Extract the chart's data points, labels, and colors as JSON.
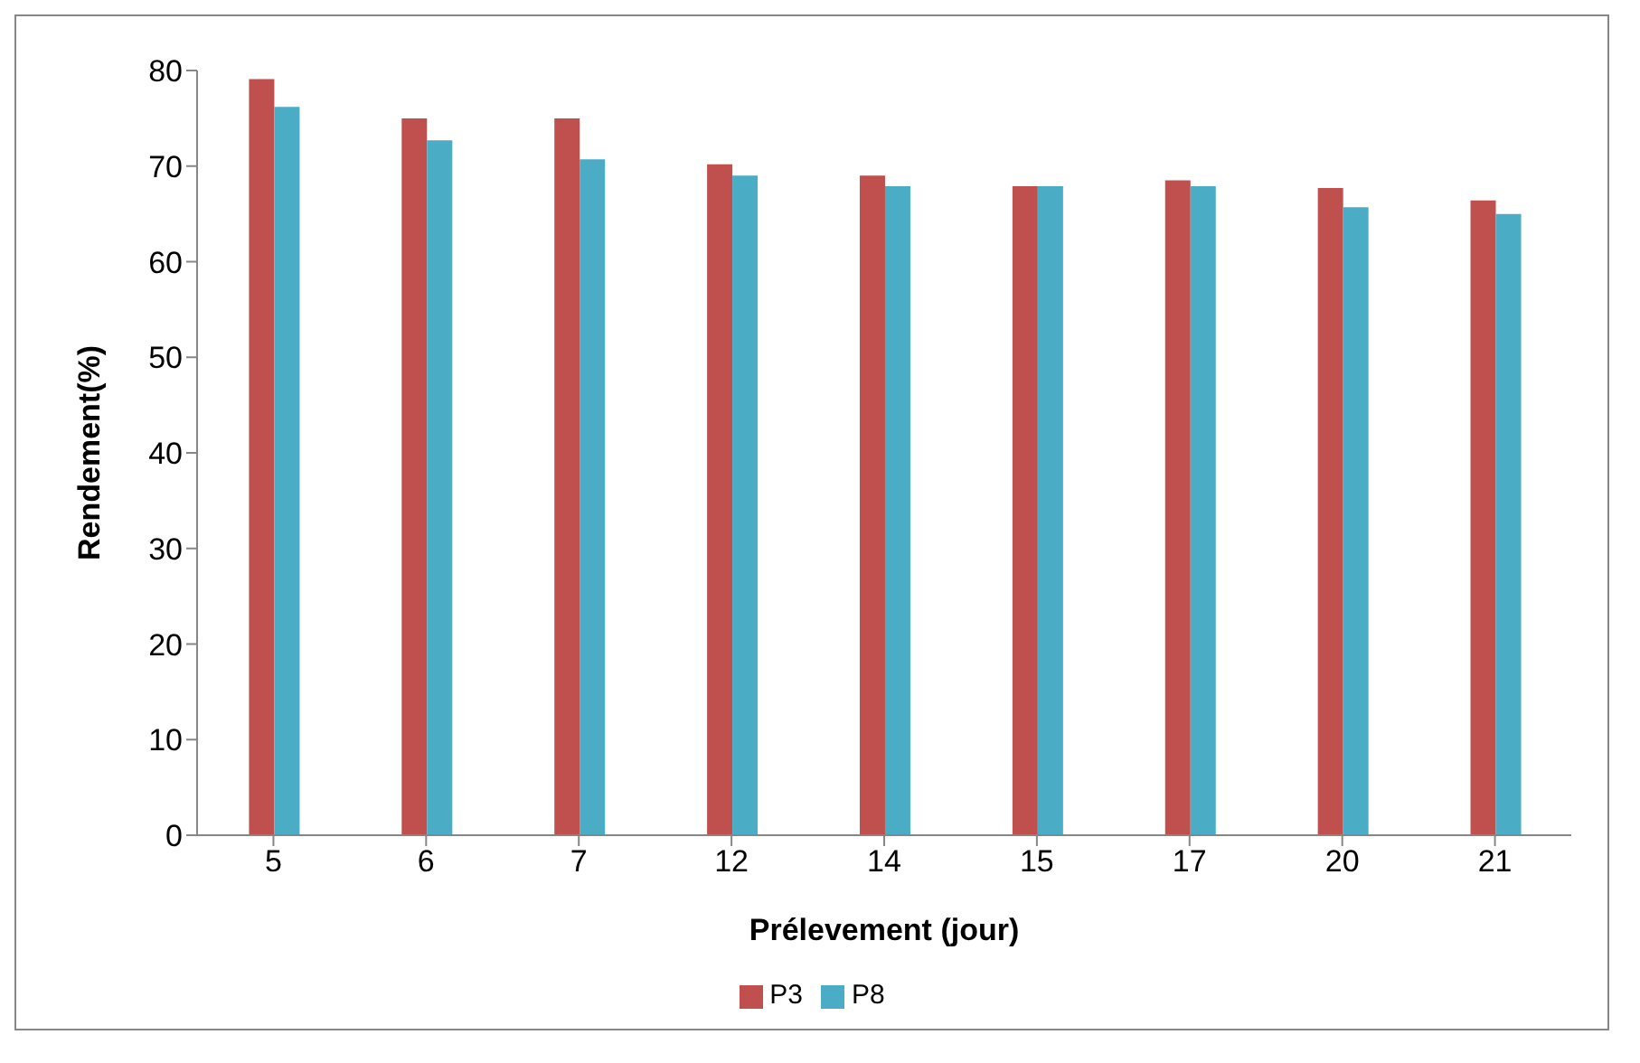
{
  "chart_data": {
    "type": "bar",
    "xlabel": "Prélevement (jour)",
    "ylabel": "Rendement(%)",
    "categories": [
      "5",
      "6",
      "7",
      "12",
      "14",
      "15",
      "17",
      "20",
      "21"
    ],
    "series": [
      {
        "name": "P3",
        "color": "#c0504d",
        "values": [
          79.1,
          75.0,
          75.0,
          70.2,
          69.0,
          67.9,
          68.5,
          67.7,
          66.4
        ]
      },
      {
        "name": "P8",
        "color": "#4bacc6",
        "values": [
          76.2,
          72.7,
          70.7,
          69.0,
          67.9,
          67.9,
          67.9,
          65.7,
          65.0
        ]
      }
    ],
    "ylim": [
      0,
      80
    ],
    "yticks": [
      0,
      10,
      20,
      30,
      40,
      50,
      60,
      70,
      80
    ],
    "grid": false,
    "legend": "bottom"
  }
}
